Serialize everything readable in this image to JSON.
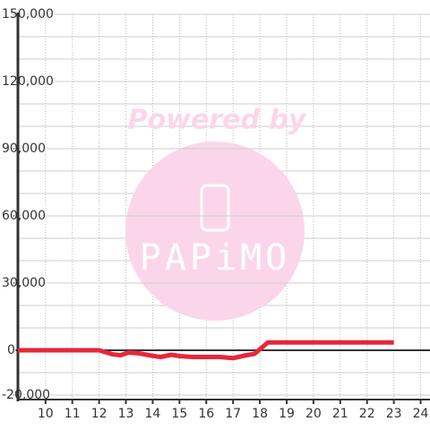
{
  "chart_data": {
    "type": "line",
    "watermark": {
      "top": "Powered by",
      "brand": "PAPiMO"
    },
    "xlim": [
      8.97,
      24.35
    ],
    "xticks": [
      10,
      11,
      12,
      13,
      14,
      15,
      16,
      17,
      18,
      19,
      20,
      21,
      22,
      23,
      24
    ],
    "ylim": [
      -22000,
      150000
    ],
    "yticks": [
      {
        "value": -20000,
        "label": "-20,000"
      },
      0,
      {
        "value": 30000,
        "label": "30,000"
      },
      {
        "value": 60000,
        "label": "60,000"
      },
      {
        "value": 90000,
        "label": "90,000"
      },
      {
        "value": 120000,
        "label": "120,000"
      },
      {
        "value": 150000,
        "label": "150,000"
      }
    ],
    "yminorticks": [
      -10000,
      10000,
      20000,
      40000,
      50000,
      70000,
      80000,
      100000,
      110000,
      130000,
      140000
    ],
    "grid": true,
    "series": [
      {
        "color": "#e8263a",
        "x": [
          8.97,
          12,
          12.5,
          12.8,
          13.1,
          13.5,
          14,
          14.3,
          14.7,
          15,
          15.5,
          16.5,
          17,
          17.5,
          17.8,
          18.3,
          19,
          20,
          21,
          22,
          23
        ],
        "values": [
          0,
          0,
          -1800,
          -2200,
          -1000,
          -1400,
          -2500,
          -3000,
          -2000,
          -2600,
          -3000,
          -3000,
          -3500,
          -2200,
          -1600,
          3500,
          3500,
          3500,
          3500,
          3500,
          3500
        ]
      }
    ]
  }
}
